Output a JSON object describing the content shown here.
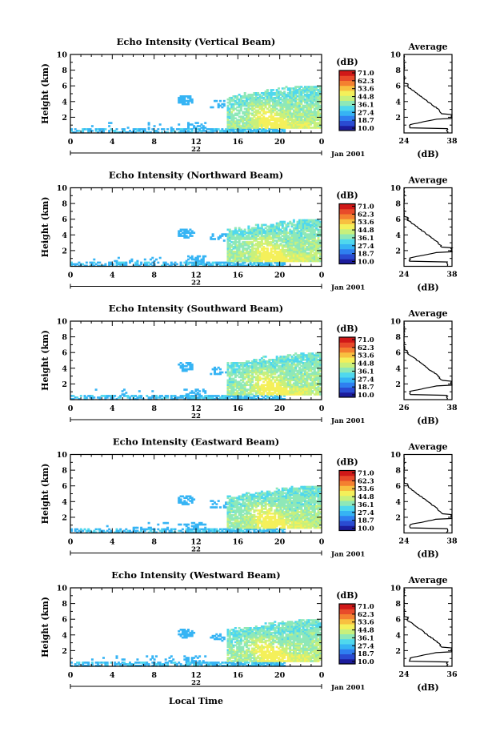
{
  "figure": {
    "xlabel": "Local Time",
    "date_label": "Jan 2001",
    "day_label": "22",
    "unit_label": "(dB)",
    "colorbar_ticks": [
      "71.0",
      "62.3",
      "53.6",
      "44.8",
      "36.1",
      "27.4",
      "18.7",
      "10.0"
    ],
    "colormap": [
      "#1c1c9c",
      "#2a4bd2",
      "#2f7ff0",
      "#36b4f4",
      "#4fd8ee",
      "#8ee8b8",
      "#c8f07c",
      "#f4f05a",
      "#f8c040",
      "#f48030",
      "#e84a2a",
      "#d01818"
    ]
  },
  "chart_data": [
    {
      "type": "heatmap",
      "title": "Echo Intensity (Vertical Beam)",
      "ylabel": "Height (km)",
      "xlim": [
        0,
        24
      ],
      "ylim": [
        0,
        10
      ],
      "x_ticks": [
        "0",
        "4",
        "8",
        "12",
        "16",
        "20",
        "0"
      ],
      "y_ticks": [
        "2",
        "4",
        "6",
        "8",
        "10"
      ],
      "clim": [
        10.0,
        71.0
      ],
      "profile": {
        "title": "Average",
        "xlabel": "(dB)",
        "xlim": [
          24,
          38
        ],
        "x_ticks": [
          "24",
          "38"
        ],
        "ylim": [
          0,
          10
        ],
        "y_ticks": [
          "2",
          "4",
          "6",
          "8",
          "10"
        ]
      }
    },
    {
      "type": "heatmap",
      "title": "Echo Intensity (Northward Beam)",
      "ylabel": "Height (km)",
      "xlim": [
        0,
        24
      ],
      "ylim": [
        0,
        10
      ],
      "x_ticks": [
        "0",
        "4",
        "8",
        "12",
        "16",
        "20",
        "0"
      ],
      "y_ticks": [
        "2",
        "4",
        "6",
        "8",
        "10"
      ],
      "clim": [
        10.0,
        71.0
      ],
      "profile": {
        "title": "Average",
        "xlabel": "(dB)",
        "xlim": [
          24,
          38
        ],
        "x_ticks": [
          "24",
          "38"
        ],
        "ylim": [
          0,
          10
        ],
        "y_ticks": [
          "2",
          "4",
          "6",
          "8",
          "10"
        ]
      }
    },
    {
      "type": "heatmap",
      "title": "Echo Intensity (Southward Beam)",
      "ylabel": "Height (km)",
      "xlim": [
        0,
        24
      ],
      "ylim": [
        0,
        10
      ],
      "x_ticks": [
        "0",
        "4",
        "8",
        "12",
        "16",
        "20",
        "0"
      ],
      "y_ticks": [
        "2",
        "4",
        "6",
        "8",
        "10"
      ],
      "clim": [
        10.0,
        71.0
      ],
      "profile": {
        "title": "Average",
        "xlabel": "(dB)",
        "xlim": [
          26,
          38
        ],
        "x_ticks": [
          "26",
          "38"
        ],
        "ylim": [
          0,
          10
        ],
        "y_ticks": [
          "2",
          "4",
          "6",
          "8",
          "10"
        ]
      }
    },
    {
      "type": "heatmap",
      "title": "Echo Intensity (Eastward Beam)",
      "ylabel": "Height (km)",
      "xlim": [
        0,
        24
      ],
      "ylim": [
        0,
        10
      ],
      "x_ticks": [
        "0",
        "4",
        "8",
        "12",
        "16",
        "20",
        "0"
      ],
      "y_ticks": [
        "2",
        "4",
        "6",
        "8",
        "10"
      ],
      "clim": [
        10.0,
        71.0
      ],
      "profile": {
        "title": "Average",
        "xlabel": "(dB)",
        "xlim": [
          24,
          38
        ],
        "x_ticks": [
          "24",
          "38"
        ],
        "ylim": [
          0,
          10
        ],
        "y_ticks": [
          "2",
          "4",
          "6",
          "8",
          "10"
        ]
      }
    },
    {
      "type": "heatmap",
      "title": "Echo Intensity (Westward Beam)",
      "ylabel": "Height (km)",
      "xlim": [
        0,
        24
      ],
      "ylim": [
        0,
        10
      ],
      "x_ticks": [
        "0",
        "4",
        "8",
        "12",
        "16",
        "20",
        "0"
      ],
      "y_ticks": [
        "2",
        "4",
        "6",
        "8",
        "10"
      ],
      "clim": [
        10.0,
        71.0
      ],
      "profile": {
        "title": "Average",
        "xlabel": "(dB)",
        "xlim": [
          24,
          36
        ],
        "x_ticks": [
          "24",
          "36"
        ],
        "ylim": [
          0,
          10
        ],
        "y_ticks": [
          "2",
          "4",
          "6",
          "8",
          "10"
        ]
      }
    }
  ]
}
